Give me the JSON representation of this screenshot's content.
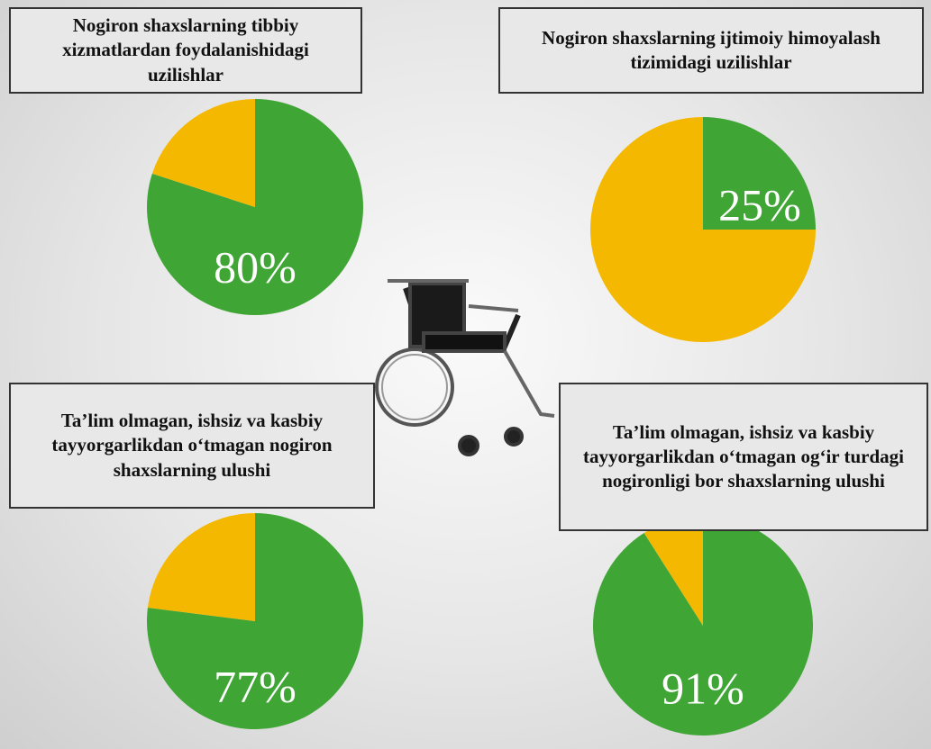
{
  "chart_data": [
    {
      "type": "pie",
      "title": "Nogiron shaxslarning tibbiy xizmatlardan foydalanishidagi uzilishlar",
      "values": [
        80,
        20
      ],
      "value_labels": [
        "80%",
        null
      ],
      "colors": [
        "#3fa535",
        "#f5b800"
      ]
    },
    {
      "type": "pie",
      "title": "Nogiron shaxslarning ijtimoiy himoyalash tizimidagi uzilishlar",
      "values": [
        25,
        75
      ],
      "value_labels": [
        "25%",
        null
      ],
      "colors": [
        "#3fa535",
        "#f5b800"
      ]
    },
    {
      "type": "pie",
      "title": "Ta’lim olmagan, ishsiz va kasbiy tayyorgarlikdan o‘tmagan nogiron shaxslarning ulushi",
      "values": [
        77,
        23
      ],
      "value_labels": [
        "77%",
        null
      ],
      "colors": [
        "#3fa535",
        "#f5b800"
      ]
    },
    {
      "type": "pie",
      "title": "Ta’lim olmagan, ishsiz va kasbiy tayyorgarlikdan o‘tmagan og‘ir turdagi nogironligi bor shaxslarning ulushi",
      "values": [
        91,
        9
      ],
      "value_labels": [
        "91%",
        null
      ],
      "colors": [
        "#3fa535",
        "#f5b800"
      ]
    }
  ]
}
